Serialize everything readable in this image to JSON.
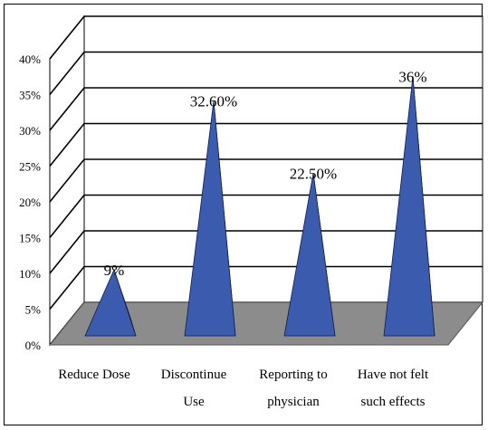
{
  "chart_data": {
    "type": "bar",
    "bar_shape": "pyramid-3d",
    "categories": [
      [
        "Reduce Dose"
      ],
      [
        "Discontinue",
        "Use"
      ],
      [
        "Reporting to",
        "physician"
      ],
      [
        "Have not felt",
        "such effects"
      ]
    ],
    "values": [
      9,
      32.6,
      22.5,
      36
    ],
    "data_labels": [
      "9%",
      "32.60%",
      "22.50%",
      "36%"
    ],
    "yticks": [
      "0%",
      "5%",
      "10%",
      "15%",
      "20%",
      "25%",
      "30%",
      "35%",
      "40%"
    ],
    "ylim": [
      0,
      40
    ],
    "grid": true,
    "legend": "none"
  },
  "colors": {
    "bar_front": "#3B5BAE",
    "bar_side": "#1E3575",
    "bar_outline": "#0F1E4A",
    "floor": "#8C8C8C",
    "wall": "#FFFFFF",
    "grid": "#000000"
  }
}
